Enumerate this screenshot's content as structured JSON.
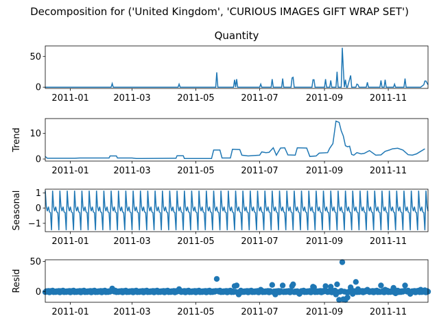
{
  "figure_title": "Decomposition for ('United Kingdom', 'CURIOUS IMAGES GIFT WRAP SET')",
  "chart_data": [
    {
      "name": "observed",
      "type": "line",
      "title": "Quantity",
      "ylabel": "",
      "ylim": [
        -2,
        67
      ],
      "yticks": [
        0,
        50
      ],
      "xlim": [
        "2010-12-08",
        "2011-12-09"
      ],
      "xticks": [
        "2011-01",
        "2011-03",
        "2011-05",
        "2011-07",
        "2011-09",
        "2011-11"
      ],
      "color": "#1f77b4",
      "x": [
        "2010-12-08",
        "2011-02-09",
        "2011-02-10",
        "2011-02-11",
        "2011-04-14",
        "2011-04-15",
        "2011-04-16",
        "2011-05-20",
        "2011-05-21",
        "2011-05-22",
        "2011-06-06",
        "2011-06-07",
        "2011-06-08",
        "2011-06-09",
        "2011-06-10",
        "2011-07-01",
        "2011-07-02",
        "2011-07-03",
        "2011-07-12",
        "2011-07-13",
        "2011-07-14",
        "2011-07-22",
        "2011-07-23",
        "2011-07-24",
        "2011-07-31",
        "2011-08-01",
        "2011-08-02",
        "2011-08-03",
        "2011-08-20",
        "2011-08-21",
        "2011-08-22",
        "2011-08-23",
        "2011-09-01",
        "2011-09-02",
        "2011-09-03",
        "2011-09-06",
        "2011-09-07",
        "2011-09-08",
        "2011-09-12",
        "2011-09-13",
        "2011-09-14",
        "2011-09-17",
        "2011-09-18",
        "2011-09-19",
        "2011-09-20",
        "2011-09-21",
        "2011-09-22",
        "2011-09-23",
        "2011-09-26",
        "2011-09-27",
        "2011-09-28",
        "2011-10-01",
        "2011-10-02",
        "2011-10-03",
        "2011-10-04",
        "2011-10-11",
        "2011-10-12",
        "2011-10-13",
        "2011-10-24",
        "2011-10-25",
        "2011-10-26",
        "2011-10-28",
        "2011-10-29",
        "2011-10-30",
        "2011-11-06",
        "2011-11-07",
        "2011-11-08",
        "2011-11-16",
        "2011-11-17",
        "2011-11-18",
        "2011-12-02",
        "2011-12-05",
        "2011-12-06",
        "2011-12-07",
        "2011-12-09"
      ],
      "y": [
        0,
        0,
        6,
        0,
        0,
        5,
        0,
        0,
        24,
        0,
        0,
        12,
        0,
        13,
        0,
        0,
        5,
        0,
        0,
        13,
        0,
        0,
        14,
        0,
        0,
        15,
        16,
        0,
        0,
        12,
        12,
        0,
        0,
        13,
        0,
        0,
        11,
        0,
        0,
        25,
        0,
        0,
        64,
        30,
        0,
        12,
        0,
        0,
        19,
        0,
        0,
        0,
        5,
        4,
        0,
        0,
        8,
        0,
        0,
        11,
        0,
        0,
        12,
        0,
        0,
        5,
        0,
        0,
        14,
        0,
        0,
        4,
        10,
        10,
        4
      ]
    },
    {
      "name": "trend",
      "type": "line",
      "title": "",
      "ylabel": "Trend",
      "ylim": [
        -0.8,
        15.8
      ],
      "yticks": [
        0,
        10
      ],
      "xlim": [
        "2010-12-08",
        "2011-12-09"
      ],
      "xticks": [
        "2011-01",
        "2011-03",
        "2011-05",
        "2011-07",
        "2011-09",
        "2011-11"
      ],
      "color": "#1f77b4",
      "x": [
        "2010-12-08",
        "2010-12-10",
        "2010-12-12",
        "2011-01-05",
        "2011-01-10",
        "2011-02-07",
        "2011-02-08",
        "2011-02-14",
        "2011-02-15",
        "2011-03-01",
        "2011-03-05",
        "2011-03-10",
        "2011-04-12",
        "2011-04-13",
        "2011-04-19",
        "2011-04-20",
        "2011-05-16",
        "2011-05-18",
        "2011-05-24",
        "2011-05-26",
        "2011-06-03",
        "2011-06-05",
        "2011-06-12",
        "2011-06-14",
        "2011-06-20",
        "2011-07-01",
        "2011-07-03",
        "2011-07-07",
        "2011-07-10",
        "2011-07-14",
        "2011-07-17",
        "2011-07-21",
        "2011-07-25",
        "2011-07-28",
        "2011-08-04",
        "2011-08-06",
        "2011-08-15",
        "2011-08-18",
        "2011-08-24",
        "2011-08-27",
        "2011-09-04",
        "2011-09-06",
        "2011-09-09",
        "2011-09-12",
        "2011-09-15",
        "2011-09-17",
        "2011-09-19",
        "2011-09-21",
        "2011-09-23",
        "2011-09-25",
        "2011-09-27",
        "2011-09-29",
        "2011-10-02",
        "2011-10-06",
        "2011-10-09",
        "2011-10-14",
        "2011-10-20",
        "2011-10-25",
        "2011-10-29",
        "2011-11-02",
        "2011-11-05",
        "2011-11-10",
        "2011-11-15",
        "2011-11-20",
        "2011-11-24",
        "2011-11-28",
        "2011-12-02",
        "2011-12-06"
      ],
      "y": [
        1.0,
        0.3,
        0.3,
        0.3,
        0.4,
        0.4,
        1.2,
        1.2,
        0.4,
        0.4,
        0.2,
        0.2,
        0.3,
        1.3,
        1.3,
        0.2,
        0.2,
        3.5,
        3.5,
        0.4,
        0.4,
        3.8,
        3.7,
        1.5,
        1.2,
        1.5,
        2.8,
        2.5,
        2.6,
        4.4,
        1.5,
        4.3,
        4.4,
        1.6,
        1.5,
        4.4,
        4.3,
        1.0,
        1.2,
        2.3,
        2.5,
        4.2,
        6.0,
        14.8,
        14.3,
        11.0,
        9.0,
        5.2,
        4.8,
        5.0,
        1.8,
        1.5,
        2.5,
        2.0,
        2.2,
        3.3,
        1.5,
        1.6,
        3.0,
        3.5,
        4.0,
        4.2,
        3.5,
        1.7,
        1.5,
        2.0,
        3.0,
        4.0
      ]
    },
    {
      "name": "seasonal",
      "type": "line",
      "title": "",
      "ylabel": "Seasonal",
      "ylim": [
        -1.55,
        1.25
      ],
      "yticks": [
        -1,
        0,
        1
      ],
      "xlim": [
        "2010-12-08",
        "2011-12-09"
      ],
      "xticks": [
        "2011-01",
        "2011-03",
        "2011-05",
        "2011-07",
        "2011-09",
        "2011-11"
      ],
      "color": "#1f77b4",
      "start": "2010-12-08",
      "end": "2011-12-09",
      "period_days": 7,
      "pattern": [
        1.15,
        0.1,
        -0.2,
        0.1,
        -0.25,
        -0.3,
        -1.45
      ]
    },
    {
      "name": "resid",
      "type": "scatter",
      "title": "",
      "ylabel": "Resid",
      "ylim": [
        -18,
        53
      ],
      "yticks": [
        0,
        50
      ],
      "xlim": [
        "2010-12-08",
        "2011-12-09"
      ],
      "xticks": [
        "2011-01",
        "2011-03",
        "2011-05",
        "2011-07",
        "2011-09",
        "2011-11"
      ],
      "color": "#1f77b4",
      "start": "2010-12-08",
      "end": "2011-12-09",
      "baseline_values": [
        -1,
        0.5,
        -0.5,
        1,
        -1.5,
        0.8,
        -0.3,
        1.5,
        -1.2,
        0.2
      ],
      "outliers": [
        {
          "x": "2011-02-10",
          "y": 5
        },
        {
          "x": "2011-04-15",
          "y": 4
        },
        {
          "x": "2011-05-21",
          "y": 21
        },
        {
          "x": "2011-06-07",
          "y": 9
        },
        {
          "x": "2011-06-09",
          "y": 10
        },
        {
          "x": "2011-06-11",
          "y": -5
        },
        {
          "x": "2011-07-02",
          "y": 3
        },
        {
          "x": "2011-07-13",
          "y": 11
        },
        {
          "x": "2011-07-16",
          "y": -5
        },
        {
          "x": "2011-07-23",
          "y": 10
        },
        {
          "x": "2011-08-01",
          "y": 9
        },
        {
          "x": "2011-08-02",
          "y": 12
        },
        {
          "x": "2011-08-08",
          "y": -4
        },
        {
          "x": "2011-08-21",
          "y": 8
        },
        {
          "x": "2011-08-22",
          "y": 7
        },
        {
          "x": "2011-09-02",
          "y": 9
        },
        {
          "x": "2011-09-07",
          "y": 8
        },
        {
          "x": "2011-09-12",
          "y": -5
        },
        {
          "x": "2011-09-13",
          "y": 12
        },
        {
          "x": "2011-09-15",
          "y": -14
        },
        {
          "x": "2011-09-18",
          "y": 49
        },
        {
          "x": "2011-09-19",
          "y": -13
        },
        {
          "x": "2011-09-21",
          "y": -14
        },
        {
          "x": "2011-09-23",
          "y": -10
        },
        {
          "x": "2011-09-26",
          "y": 7
        },
        {
          "x": "2011-09-28",
          "y": -4
        },
        {
          "x": "2011-10-01",
          "y": 16
        },
        {
          "x": "2011-10-03",
          "y": 4
        },
        {
          "x": "2011-10-12",
          "y": 3
        },
        {
          "x": "2011-10-25",
          "y": 10
        },
        {
          "x": "2011-10-29",
          "y": 3
        },
        {
          "x": "2011-11-06",
          "y": 6
        },
        {
          "x": "2011-11-08",
          "y": -3
        },
        {
          "x": "2011-11-17",
          "y": 10
        },
        {
          "x": "2011-11-22",
          "y": -4
        },
        {
          "x": "2011-12-02",
          "y": 3
        },
        {
          "x": "2011-12-06",
          "y": 2
        }
      ]
    }
  ]
}
